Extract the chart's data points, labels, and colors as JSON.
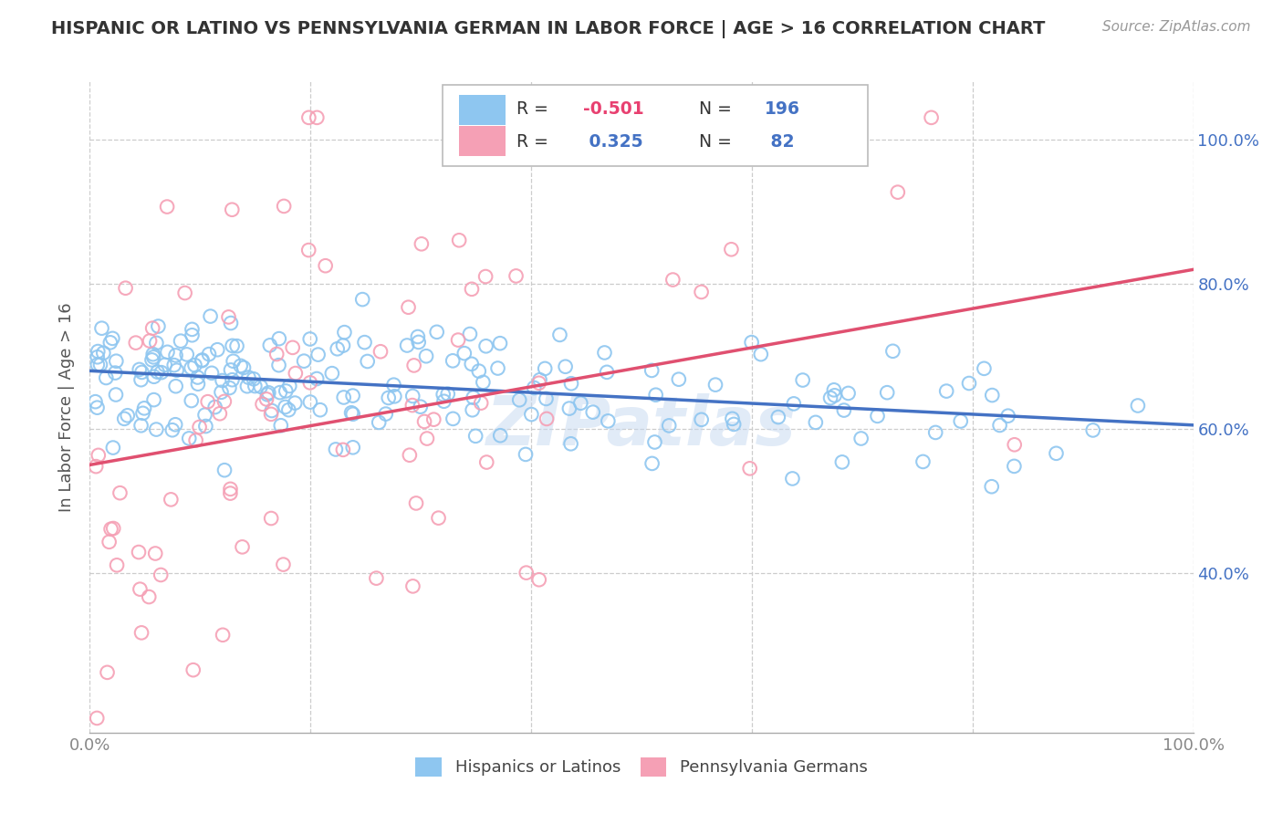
{
  "title": "HISPANIC OR LATINO VS PENNSYLVANIA GERMAN IN LABOR FORCE | AGE > 16 CORRELATION CHART",
  "source": "Source: ZipAtlas.com",
  "ylabel": "In Labor Force | Age > 16",
  "xmin": 0.0,
  "xmax": 1.0,
  "ymin": 0.18,
  "ymax": 1.08,
  "blue_R": -0.501,
  "blue_N": 196,
  "pink_R": 0.325,
  "pink_N": 82,
  "blue_color": "#8EC6F0",
  "pink_color": "#F5A0B5",
  "blue_line_color": "#4472C4",
  "pink_line_color": "#E05070",
  "legend_label_blue": "Hispanics or Latinos",
  "legend_label_pink": "Pennsylvania Germans",
  "watermark": "ZIPatlas",
  "ytick_labels": [
    "40.0%",
    "60.0%",
    "80.0%",
    "100.0%"
  ],
  "ytick_values": [
    0.4,
    0.6,
    0.8,
    1.0
  ],
  "xtick_labels_bottom": [
    "0.0%",
    "100.0%"
  ],
  "xtick_values_bottom": [
    0.0,
    1.0
  ],
  "blue_intercept": 0.68,
  "blue_slope": -0.075,
  "pink_intercept": 0.55,
  "pink_slope": 0.27,
  "background_color": "#FFFFFF",
  "grid_color": "#CCCCCC",
  "title_color": "#333333",
  "source_color": "#999999",
  "axis_label_color": "#555555",
  "tick_label_color_blue": "#4472C4",
  "tick_label_color_gray": "#888888",
  "legend_R_color_neg": "#E84070",
  "legend_R_color_pos": "#4472C4",
  "legend_N_color": "#4472C4"
}
